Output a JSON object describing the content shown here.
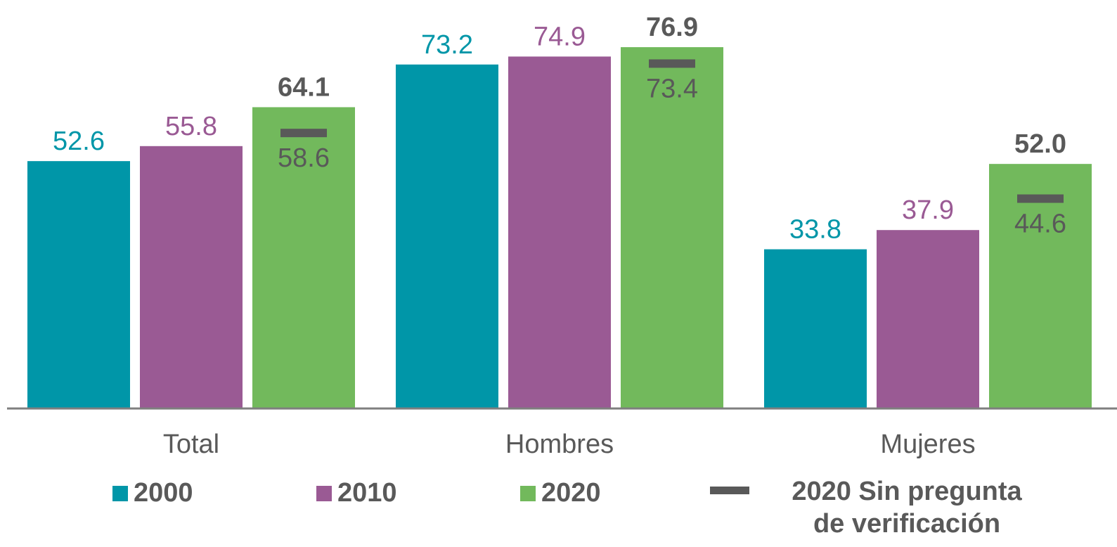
{
  "colors": {
    "s2000": "#0096A8",
    "s2010": "#9A5A94",
    "s2020": "#72B95C",
    "marker": "#595959",
    "axis": "#7F7F7F",
    "category_text": "#595959"
  },
  "chart_data": {
    "type": "bar",
    "categories": [
      "Total",
      "Hombres",
      "Mujeres"
    ],
    "series": [
      {
        "name": "2000",
        "values": [
          52.6,
          73.2,
          33.8
        ],
        "labels": [
          "52.6",
          "73.2",
          "33.8"
        ]
      },
      {
        "name": "2010",
        "values": [
          55.8,
          74.9,
          37.9
        ],
        "labels": [
          "55.8",
          "74.9",
          "37.9"
        ]
      },
      {
        "name": "2020",
        "values": [
          64.1,
          76.9,
          52.0
        ],
        "labels": [
          "64.1",
          "76.9",
          "52.0"
        ]
      }
    ],
    "marker_series": {
      "name": "2020 Sin pregunta de verificación",
      "values": [
        58.6,
        73.4,
        44.6
      ],
      "labels": [
        "58.6",
        "73.4",
        "44.6"
      ]
    },
    "ylim": [
      0,
      80
    ],
    "grid": false,
    "legend_position": "bottom"
  },
  "legend": {
    "items": [
      "2000",
      "2010",
      "2020"
    ],
    "marker_line1": "2020 Sin pregunta",
    "marker_line2": "de verificación"
  }
}
